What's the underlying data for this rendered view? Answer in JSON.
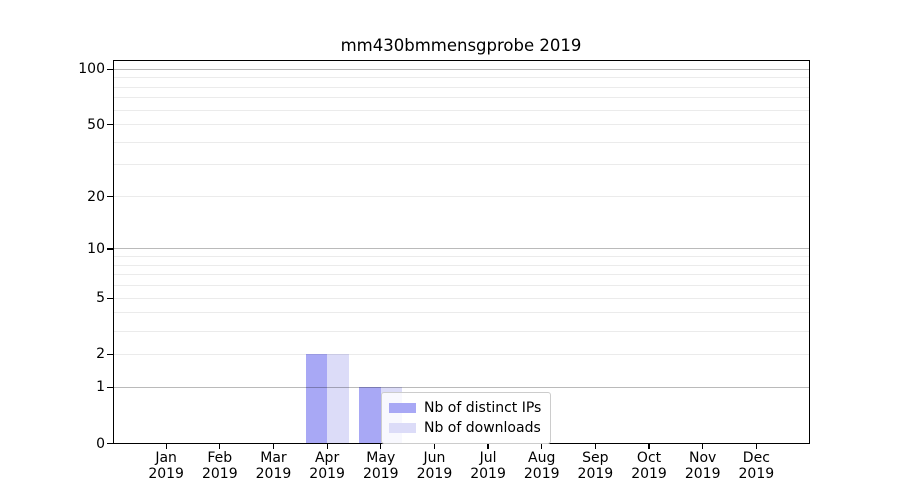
{
  "title": "mm430bmmensgprobe 2019",
  "legend": {
    "items": [
      {
        "label": "Nb of distinct IPs",
        "color": "#a8a8f5"
      },
      {
        "label": "Nb of downloads",
        "color": "#dcdcf8"
      }
    ]
  },
  "chart_data": {
    "type": "bar",
    "title": "mm430bmmensgprobe 2019",
    "x_months": [
      "Jan",
      "Feb",
      "Mar",
      "Apr",
      "May",
      "Jun",
      "Jul",
      "Aug",
      "Sep",
      "Oct",
      "Nov",
      "Dec"
    ],
    "x_year": "2019",
    "series": [
      {
        "name": "Nb of distinct IPs",
        "color": "#a8a8f5",
        "values": [
          0,
          0,
          0,
          2,
          1,
          0,
          0,
          0,
          0,
          0,
          0,
          0
        ]
      },
      {
        "name": "Nb of downloads",
        "color": "#dcdcf8",
        "values": [
          0,
          0,
          0,
          2,
          1,
          0,
          0,
          0,
          0,
          0,
          0,
          0
        ]
      }
    ],
    "y_scale": "log1p",
    "ylim": [
      0,
      112
    ],
    "y_tick_labels": [
      0,
      1,
      2,
      5,
      10,
      20,
      50,
      100
    ],
    "y_major_gridlines": [
      1,
      10,
      100
    ],
    "y_minor_gridlines": [
      2,
      3,
      4,
      5,
      6,
      7,
      8,
      9,
      20,
      30,
      40,
      50,
      60,
      70,
      80,
      90
    ],
    "grid": "both",
    "legend_position": "inside lower-center",
    "colors": {
      "grid_major": "rgba(0,0,0,0.27)",
      "grid_minor": "rgba(0,0,0,0.08)",
      "axis": "#000000",
      "background": "#ffffff"
    }
  }
}
